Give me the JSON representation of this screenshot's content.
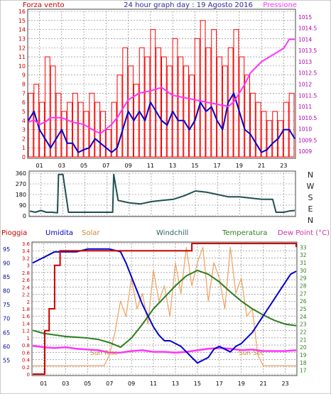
{
  "header": {
    "left_label": "Forza vento",
    "title": "24 hour graph day : 19 Agosto 2016",
    "right_label": "Pressione"
  },
  "direction_labels": [
    "N",
    "W",
    "S",
    "E",
    "N"
  ],
  "bottom_headers": {
    "pioggia": "Pioggia",
    "umidita": "Umidita",
    "solar": "Solar",
    "windchill": "Windchill",
    "temperatura": "Temperatura",
    "dewpoint": "Dew Point (°C)"
  },
  "annotations": {
    "sun_rise": "Sun Rise",
    "sun_set": "Sun Set"
  },
  "colors": {
    "wind_gust": "#ff0000",
    "wind_avg": "#0000cc",
    "pressure": "#ff33ff",
    "direction": "#1f4f4f",
    "rain": "#cc0000",
    "humidity": "#0000cc",
    "solar": "#f0a060",
    "temperature": "#2e7d20",
    "dewpoint": "#ff33ff",
    "windchill": "#2e6060",
    "grid": "#777777",
    "left_axis_text": "#cc0000",
    "right_axis_text": "#aa00aa",
    "blue_axis_text": "#0000aa",
    "title_text": "#2b2b9e"
  },
  "chart_data": [
    {
      "type": "line",
      "title": "24 hour graph day : 19 Agosto 2016",
      "x_ticks": [
        "01",
        "03",
        "05",
        "07",
        "09",
        "11",
        "13",
        "15",
        "17",
        "19",
        "21",
        "23"
      ],
      "x_range_hours": [
        0,
        24
      ],
      "ylim_left": [
        0,
        16
      ],
      "y_ticks_left": [
        "0",
        "1",
        "2",
        "3",
        "4",
        "5",
        "6",
        "7",
        "8",
        "9",
        "10",
        "11",
        "12",
        "13",
        "14",
        "15",
        "16"
      ],
      "ylim_right": [
        1008.75,
        1015.25
      ],
      "y_ticks_right": [
        "1009",
        "1009.5",
        "1010",
        "1010.5",
        "1011",
        "1011.5",
        "1012",
        "1012.5",
        "1013",
        "1013.5",
        "1014",
        "1014.5",
        "1015"
      ],
      "grid": true,
      "series": [
        {
          "name": "Forza vento",
          "axis": "left",
          "style": "bars",
          "x": [
            0,
            0.5,
            1,
            1.5,
            2,
            2.5,
            3,
            3.5,
            4,
            4.5,
            5,
            5.5,
            6,
            6.5,
            7,
            7.5,
            8,
            8.5,
            9,
            9.5,
            10,
            10.5,
            11,
            11.5,
            12,
            12.5,
            13,
            13.5,
            14,
            14.5,
            15,
            15.5,
            16,
            16.5,
            17,
            17.5,
            18,
            18.5,
            19,
            19.5,
            20,
            20.5,
            21,
            21.5,
            22,
            22.5,
            23,
            23.5
          ],
          "values": [
            7,
            8,
            6,
            11,
            10,
            7,
            5,
            6,
            7,
            6,
            5,
            7,
            6,
            5,
            3,
            6,
            9,
            12,
            10,
            8,
            12,
            11,
            14,
            12,
            11,
            10,
            13,
            11,
            10,
            9,
            13,
            15,
            12,
            14,
            11,
            10,
            12,
            14,
            11,
            9,
            7,
            6,
            5,
            4,
            5,
            4,
            6,
            7
          ]
        },
        {
          "name": "",
          "axis": "left",
          "x": [
            0,
            0.5,
            1,
            1.5,
            2,
            2.5,
            3,
            3.5,
            4,
            4.5,
            5,
            5.5,
            6,
            6.5,
            7,
            7.5,
            8,
            8.5,
            9,
            9.5,
            10,
            10.5,
            11,
            11.5,
            12,
            12.5,
            13,
            13.5,
            14,
            14.5,
            15,
            15.5,
            16,
            16.5,
            17,
            17.5,
            18,
            18.5,
            19,
            19.5,
            20,
            20.5,
            21,
            21.5,
            22,
            22.5,
            23,
            23.5,
            24
          ],
          "values": [
            4,
            5,
            3,
            2,
            1,
            2,
            3,
            1.5,
            1.5,
            0.5,
            0.8,
            1,
            2,
            1.5,
            1,
            0.5,
            1,
            3,
            5,
            4,
            5,
            4,
            6,
            5,
            4,
            3.5,
            5,
            4,
            4,
            3,
            4,
            6,
            5,
            5.5,
            4,
            3,
            6,
            7,
            5,
            3,
            2.5,
            1.5,
            0.5,
            0.8,
            1.5,
            2,
            3,
            3,
            2
          ]
        },
        {
          "name": "Pressione",
          "axis": "right",
          "x": [
            0,
            0.5,
            1,
            1.5,
            2,
            3,
            4,
            5,
            6,
            6.5,
            7,
            7.5,
            8,
            8.5,
            9,
            10,
            11,
            12,
            13,
            14,
            15,
            16,
            17,
            18,
            18.5,
            19,
            19.5,
            20,
            21,
            22,
            23,
            23.5,
            24
          ],
          "values": [
            1010.3,
            1010.4,
            1010.2,
            1010.3,
            1010.5,
            1010.5,
            1010.3,
            1010.2,
            1009.9,
            1009.8,
            1010.0,
            1010.2,
            1010.5,
            1010.9,
            1011.3,
            1011.6,
            1011.7,
            1011.85,
            1011.5,
            1011.4,
            1011.3,
            1011.2,
            1011.1,
            1011.0,
            1011.2,
            1011.6,
            1012.0,
            1012.5,
            1013.0,
            1013.3,
            1013.6,
            1014.0,
            1014.0
          ]
        }
      ]
    },
    {
      "type": "line",
      "x_ticks": [
        "01",
        "03",
        "05",
        "07",
        "09",
        "11",
        "13",
        "15",
        "17",
        "19",
        "21",
        "23"
      ],
      "x_range_hours": [
        0,
        24
      ],
      "ylim": [
        0,
        360
      ],
      "y_ticks": [
        "0",
        "90",
        "180",
        "270",
        "360"
      ],
      "grid": true,
      "series": [
        {
          "name": "",
          "axis": "left",
          "x": [
            0,
            0.5,
            1,
            1.5,
            2,
            2.5,
            2.6,
            3,
            3.5,
            4,
            5,
            6,
            7,
            7.5,
            7.6,
            8,
            8.5,
            9,
            10,
            11,
            12,
            13,
            14,
            15,
            16,
            17,
            18,
            19,
            20,
            21,
            22,
            22.3,
            23,
            23.5,
            24
          ],
          "values": [
            40,
            30,
            45,
            30,
            30,
            25,
            350,
            350,
            30,
            30,
            30,
            30,
            30,
            30,
            350,
            130,
            120,
            110,
            100,
            120,
            130,
            140,
            170,
            210,
            200,
            180,
            160,
            160,
            150,
            140,
            140,
            30,
            30,
            40,
            45
          ]
        }
      ]
    },
    {
      "type": "line",
      "x_ticks": [
        "01",
        "03",
        "05",
        "07",
        "09",
        "11",
        "13",
        "15",
        "17",
        "19",
        "21",
        "23"
      ],
      "x_range_hours": [
        0,
        24
      ],
      "ylim_rain": [
        0,
        3.6
      ],
      "y_ticks_rain": [
        "0",
        "0.2",
        "0.4",
        "0.6",
        "0.8",
        "1",
        "1.2",
        "1.4",
        "1.6",
        "1.8",
        "2",
        "2.2",
        "2.4",
        "2.6",
        "2.8",
        "3",
        "3.2",
        "3.4",
        "3.6"
      ],
      "ylim_humidity": [
        50,
        97
      ],
      "y_ticks_humidity": [
        "55",
        "60",
        "65",
        "70",
        "75",
        "80",
        "85",
        "90",
        "95"
      ],
      "ylim_temperature": [
        16.5,
        33.5
      ],
      "y_ticks_temperature": [
        "17",
        "18",
        "19",
        "20",
        "21",
        "22",
        "23",
        "24",
        "25",
        "26",
        "27",
        "28",
        "29",
        "30",
        "31",
        "32",
        "33"
      ],
      "grid": true,
      "series": [
        {
          "name": "Pioggia",
          "axis": "rain",
          "x": [
            0,
            1,
            1.1,
            1.5,
            2,
            2.5,
            3,
            4,
            5,
            6,
            7,
            8,
            9,
            10,
            11,
            12,
            13,
            14,
            14.5,
            15,
            16,
            17,
            18,
            19,
            20,
            21,
            22,
            23,
            24
          ],
          "values": [
            0,
            0,
            1.2,
            1.8,
            3.0,
            3.4,
            3.4,
            3.4,
            3.4,
            3.4,
            3.4,
            3.4,
            3.4,
            3.4,
            3.4,
            3.4,
            3.4,
            3.4,
            3.6,
            3.6,
            3.6,
            3.6,
            3.6,
            3.6,
            3.6,
            3.6,
            3.6,
            3.6,
            3.5
          ]
        },
        {
          "name": "Umidita",
          "axis": "humidity",
          "x": [
            0,
            0.5,
            1,
            1.5,
            2,
            3,
            4,
            5,
            6,
            7,
            8,
            8.5,
            9,
            9.5,
            10,
            10.5,
            11,
            11.5,
            12,
            12.5,
            13,
            13.5,
            14,
            14.5,
            15,
            15.5,
            16,
            16.5,
            17,
            17.5,
            18,
            18.5,
            19,
            19.5,
            20,
            20.5,
            21,
            21.5,
            22,
            22.5,
            23,
            23.5,
            24
          ],
          "values": [
            90,
            91,
            92,
            93,
            94,
            94,
            94,
            95,
            95,
            95,
            94,
            90,
            85,
            80,
            75,
            71,
            67,
            64,
            62,
            62,
            61,
            60,
            58,
            56,
            54,
            55,
            56,
            59,
            60,
            59,
            58,
            60,
            61,
            63,
            65,
            68,
            71,
            74,
            77,
            80,
            83,
            86,
            87
          ]
        },
        {
          "name": "Solar",
          "axis": "temperature",
          "x": [
            0,
            6.5,
            7,
            7.5,
            8,
            8.5,
            9,
            9.5,
            10,
            10.5,
            11,
            11.5,
            12,
            12.5,
            13,
            13.5,
            14,
            14.5,
            15,
            15.5,
            16,
            16.5,
            17,
            17.5,
            18,
            18.5,
            19,
            19.5,
            20,
            20.5,
            21,
            24
          ],
          "values": [
            17.6,
            17.6,
            19,
            22,
            26,
            24,
            29,
            25,
            27,
            23,
            30,
            26,
            28,
            24,
            31,
            27,
            33,
            28,
            31,
            33,
            26,
            31,
            29,
            25,
            33,
            27,
            29,
            24,
            25,
            19,
            17.6,
            17.6
          ]
        },
        {
          "name": "Temperatura",
          "axis": "temperature",
          "x": [
            0,
            1,
            2,
            3,
            4,
            5,
            6,
            7,
            8,
            9,
            10,
            11,
            12,
            13,
            14,
            15,
            16,
            17,
            18,
            19,
            20,
            21,
            22,
            23,
            24
          ],
          "values": [
            22.2,
            21.8,
            21.6,
            21.4,
            21.3,
            21.2,
            21.0,
            20.6,
            20.0,
            21.2,
            23.0,
            25.0,
            26.5,
            28.0,
            29.3,
            30.0,
            29.5,
            28.5,
            27.2,
            26.0,
            25.0,
            24.2,
            23.5,
            23.0,
            22.8
          ]
        },
        {
          "name": "Dew Point (°C)",
          "axis": "temperature",
          "x": [
            0,
            1,
            2,
            3,
            4,
            5,
            6,
            7,
            8,
            9,
            10,
            11,
            12,
            13,
            14,
            15,
            16,
            17,
            18,
            19,
            20,
            21,
            22,
            23,
            24
          ],
          "values": [
            20.2,
            20.0,
            19.9,
            20.0,
            19.8,
            19.7,
            19.6,
            19.3,
            19.3,
            19.5,
            19.6,
            19.4,
            19.4,
            19.3,
            19.4,
            19.6,
            19.8,
            19.9,
            19.8,
            19.6,
            19.7,
            19.5,
            19.5,
            19.5,
            19.6
          ]
        }
      ]
    }
  ]
}
